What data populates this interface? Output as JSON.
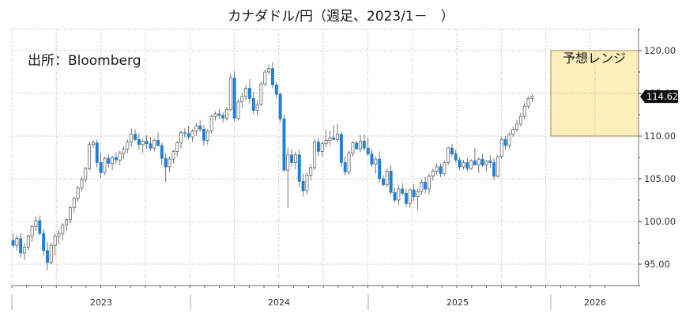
{
  "title": "カナダドル/円（週足、2023/1－　）",
  "source_label": "出所：Bloomberg",
  "forecast_label": "予想レンジ",
  "colors": {
    "up_body": "#ffffff",
    "up_edge": "#555555",
    "down_body": "#1f7fd6",
    "wick": "#555555",
    "grid": "#b0b0b0",
    "forecast_fill": "#fdeebc",
    "forecast_edge": "#a08a4a",
    "last_bg": "#111111"
  },
  "chart_data": {
    "type": "candlestick",
    "title": "カナダドル/円（週足、2023/1－　）",
    "xlabel": "",
    "ylabel": "",
    "ylim": [
      92.5,
      122.5
    ],
    "y_ticks": [
      "95.00",
      "100.00",
      "105.00",
      "110.00",
      "115.00",
      "120.00"
    ],
    "y_tick_values": [
      95,
      100,
      105,
      110,
      115,
      120
    ],
    "x_ticks": [
      "2023",
      "2024",
      "2025",
      "2026"
    ],
    "grid": true,
    "last_value_label": "114.62",
    "last_value": 114.62,
    "forecast_range": {
      "label": "予想レンジ",
      "low": 110.0,
      "high": 120.0,
      "period": "2026"
    },
    "annotation": "出所：Bloomberg",
    "frequency": "weekly",
    "series": [
      {
        "name": "CADJPY weekly OHLC",
        "ohlc": [
          [
            97.8,
            98.6,
            97.0,
            97.2
          ],
          [
            97.2,
            98.4,
            96.6,
            98.0
          ],
          [
            98.0,
            98.6,
            95.8,
            96.3
          ],
          [
            96.3,
            97.5,
            95.5,
            97.0
          ],
          [
            97.0,
            98.5,
            96.6,
            98.3
          ],
          [
            98.3,
            99.6,
            97.6,
            99.4
          ],
          [
            99.4,
            100.6,
            98.9,
            100.1
          ],
          [
            100.1,
            100.7,
            98.4,
            98.6
          ],
          [
            98.6,
            99.2,
            96.0,
            96.6
          ],
          [
            96.6,
            97.6,
            94.3,
            95.2
          ],
          [
            95.2,
            97.5,
            95.0,
            97.2
          ],
          [
            97.2,
            98.6,
            96.0,
            98.3
          ],
          [
            98.3,
            99.0,
            97.3,
            98.6
          ],
          [
            98.6,
            99.8,
            97.8,
            99.6
          ],
          [
            99.6,
            100.4,
            98.9,
            100.2
          ],
          [
            100.2,
            101.8,
            99.8,
            101.6
          ],
          [
            101.6,
            102.9,
            101.0,
            102.7
          ],
          [
            102.7,
            104.2,
            102.3,
            103.9
          ],
          [
            103.9,
            105.3,
            103.5,
            104.9
          ],
          [
            104.9,
            106.4,
            104.6,
            106.2
          ],
          [
            106.2,
            109.4,
            106.0,
            109.0
          ],
          [
            109.0,
            109.5,
            108.6,
            109.2
          ],
          [
            109.2,
            109.6,
            106.3,
            106.9
          ],
          [
            106.9,
            108.0,
            105.1,
            105.7
          ],
          [
            105.7,
            107.6,
            105.4,
            107.4
          ],
          [
            107.4,
            107.9,
            106.3,
            106.8
          ],
          [
            106.8,
            107.7,
            106.0,
            107.5
          ],
          [
            107.5,
            108.1,
            106.7,
            107.2
          ],
          [
            107.2,
            108.3,
            106.6,
            108.0
          ],
          [
            108.0,
            108.8,
            107.3,
            108.5
          ],
          [
            108.5,
            109.6,
            108.0,
            109.3
          ],
          [
            109.3,
            110.9,
            108.8,
            110.2
          ],
          [
            110.2,
            110.8,
            109.4,
            109.6
          ],
          [
            109.6,
            110.3,
            108.4,
            109.0
          ],
          [
            109.0,
            109.6,
            108.0,
            109.4
          ],
          [
            109.4,
            110.1,
            108.5,
            109.1
          ],
          [
            109.1,
            109.9,
            108.3,
            108.6
          ],
          [
            108.6,
            109.7,
            108.2,
            109.5
          ],
          [
            109.5,
            110.4,
            108.8,
            108.9
          ],
          [
            108.9,
            109.2,
            106.6,
            107.4
          ],
          [
            107.4,
            108.0,
            104.6,
            106.4
          ],
          [
            106.4,
            107.6,
            105.8,
            107.3
          ],
          [
            107.3,
            108.4,
            106.8,
            108.2
          ],
          [
            108.2,
            109.4,
            107.6,
            109.2
          ],
          [
            109.2,
            110.7,
            108.6,
            110.4
          ],
          [
            110.4,
            110.9,
            109.8,
            110.3
          ],
          [
            110.3,
            111.2,
            109.6,
            109.9
          ],
          [
            109.9,
            110.8,
            109.3,
            110.6
          ],
          [
            110.6,
            111.5,
            110.0,
            111.2
          ],
          [
            111.2,
            111.9,
            110.5,
            110.8
          ],
          [
            110.8,
            111.3,
            108.9,
            109.5
          ],
          [
            109.5,
            110.8,
            109.0,
            110.6
          ],
          [
            110.6,
            112.5,
            110.3,
            112.3
          ],
          [
            112.3,
            112.9,
            111.8,
            112.6
          ],
          [
            112.6,
            113.2,
            112.0,
            112.4
          ],
          [
            112.4,
            112.8,
            111.6,
            112.1
          ],
          [
            112.1,
            113.4,
            111.8,
            113.1
          ],
          [
            113.1,
            117.3,
            112.9,
            116.8
          ],
          [
            116.8,
            117.6,
            111.7,
            112.1
          ],
          [
            112.1,
            114.3,
            111.8,
            114.0
          ],
          [
            114.0,
            115.1,
            113.3,
            114.6
          ],
          [
            114.6,
            116.0,
            114.2,
            115.6
          ],
          [
            115.6,
            116.7,
            113.8,
            114.4
          ],
          [
            114.4,
            115.2,
            112.6,
            113.0
          ],
          [
            113.0,
            114.2,
            112.4,
            113.7
          ],
          [
            113.7,
            116.3,
            113.5,
            116.1
          ],
          [
            116.1,
            117.8,
            115.8,
            117.5
          ],
          [
            117.5,
            118.4,
            117.2,
            117.9
          ],
          [
            117.9,
            118.6,
            115.6,
            116.0
          ],
          [
            116.0,
            116.3,
            114.4,
            114.9
          ],
          [
            114.9,
            115.1,
            111.6,
            112.0
          ],
          [
            112.0,
            112.5,
            105.8,
            106.0
          ],
          [
            106.0,
            108.6,
            101.6,
            107.8
          ],
          [
            107.8,
            108.5,
            106.4,
            106.9
          ],
          [
            106.9,
            108.2,
            106.1,
            107.8
          ],
          [
            107.8,
            108.4,
            104.0,
            104.7
          ],
          [
            104.7,
            105.6,
            102.9,
            103.6
          ],
          [
            103.6,
            105.7,
            103.2,
            105.4
          ],
          [
            105.4,
            106.7,
            104.8,
            106.3
          ],
          [
            106.3,
            109.6,
            106.0,
            109.3
          ],
          [
            109.3,
            109.8,
            107.6,
            108.2
          ],
          [
            108.2,
            109.4,
            107.6,
            109.1
          ],
          [
            109.1,
            110.8,
            108.7,
            109.5
          ],
          [
            109.5,
            110.6,
            108.9,
            109.8
          ],
          [
            109.8,
            111.3,
            109.5,
            109.6
          ],
          [
            109.6,
            111.4,
            109.2,
            110.2
          ],
          [
            110.2,
            110.5,
            106.4,
            106.9
          ],
          [
            106.9,
            107.6,
            105.4,
            105.8
          ],
          [
            105.8,
            108.3,
            105.5,
            108.0
          ],
          [
            108.0,
            109.4,
            107.6,
            109.2
          ],
          [
            109.2,
            109.4,
            108.4,
            108.5
          ],
          [
            108.5,
            110.2,
            108.1,
            109.4
          ],
          [
            109.4,
            110.2,
            108.3,
            108.6
          ],
          [
            108.6,
            109.8,
            107.7,
            107.9
          ],
          [
            107.9,
            108.4,
            106.4,
            106.7
          ],
          [
            106.7,
            107.6,
            105.6,
            107.3
          ],
          [
            107.3,
            108.2,
            104.6,
            105.0
          ],
          [
            105.0,
            105.4,
            104.1,
            104.3
          ],
          [
            104.3,
            106.2,
            104.0,
            105.9
          ],
          [
            105.9,
            106.5,
            103.1,
            103.4
          ],
          [
            103.4,
            104.0,
            102.2,
            102.5
          ],
          [
            102.5,
            104.2,
            102.0,
            103.8
          ],
          [
            103.8,
            104.5,
            103.1,
            103.3
          ],
          [
            103.3,
            103.8,
            101.7,
            102.1
          ],
          [
            102.1,
            103.9,
            101.6,
            103.7
          ],
          [
            103.7,
            104.4,
            102.4,
            102.9
          ],
          [
            102.9,
            103.8,
            101.4,
            103.5
          ],
          [
            103.5,
            104.9,
            103.1,
            104.6
          ],
          [
            104.6,
            105.2,
            103.3,
            103.8
          ],
          [
            103.8,
            105.6,
            103.2,
            105.3
          ],
          [
            105.3,
            106.2,
            104.8,
            105.9
          ],
          [
            105.9,
            106.8,
            105.4,
            106.4
          ],
          [
            106.4,
            106.8,
            105.2,
            105.6
          ],
          [
            105.6,
            107.1,
            105.3,
            106.9
          ],
          [
            106.9,
            108.8,
            106.6,
            108.6
          ],
          [
            108.6,
            109.1,
            107.6,
            107.9
          ],
          [
            107.9,
            108.4,
            106.9,
            107.2
          ],
          [
            107.2,
            107.5,
            106.0,
            106.4
          ],
          [
            106.4,
            107.2,
            106.1,
            106.9
          ],
          [
            106.9,
            107.4,
            105.9,
            106.2
          ],
          [
            106.2,
            107.3,
            106.0,
            107.1
          ],
          [
            107.1,
            108.6,
            106.8,
            106.6
          ],
          [
            106.6,
            107.5,
            105.7,
            107.3
          ],
          [
            107.3,
            107.9,
            106.4,
            106.6
          ],
          [
            106.6,
            107.2,
            105.9,
            107.1
          ],
          [
            107.1,
            107.8,
            106.3,
            106.9
          ],
          [
            106.9,
            107.4,
            104.9,
            105.3
          ],
          [
            105.3,
            107.8,
            105.1,
            107.6
          ],
          [
            107.6,
            109.9,
            107.3,
            109.6
          ],
          [
            109.6,
            110.0,
            108.4,
            108.9
          ],
          [
            108.9,
            110.4,
            108.6,
            110.2
          ],
          [
            110.2,
            111.1,
            109.9,
            110.8
          ],
          [
            110.8,
            111.9,
            110.5,
            111.4
          ],
          [
            111.4,
            112.7,
            111.1,
            112.3
          ],
          [
            112.3,
            113.9,
            111.9,
            113.5
          ],
          [
            113.5,
            114.6,
            113.2,
            114.4
          ],
          [
            114.4,
            114.9,
            114.0,
            114.62
          ]
        ]
      }
    ]
  }
}
